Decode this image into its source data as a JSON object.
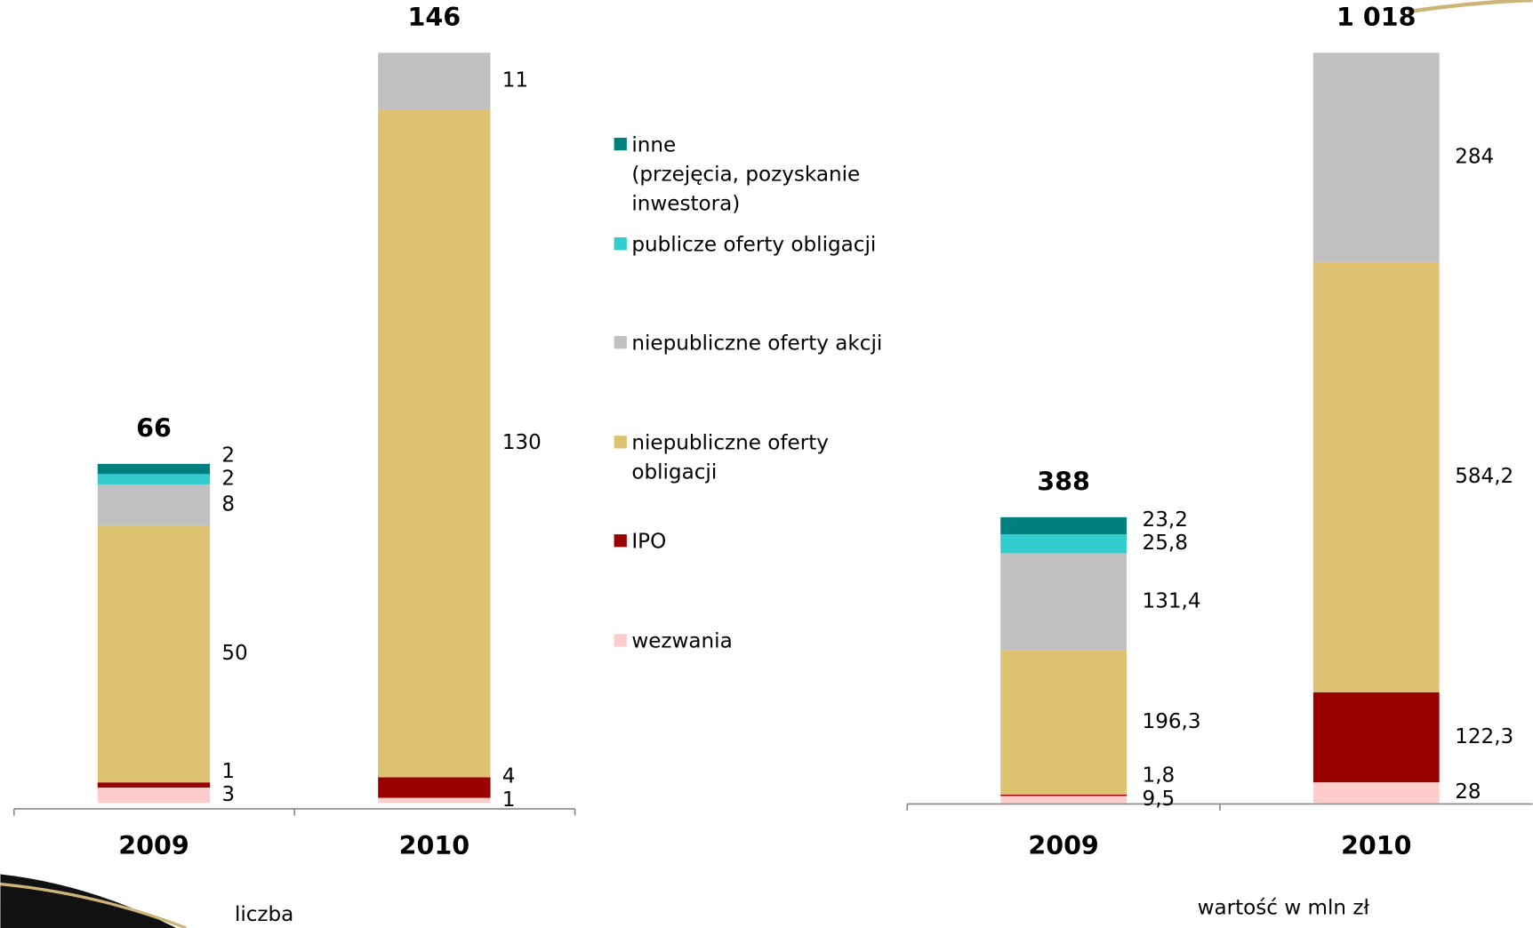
{
  "chart_data": [
    {
      "type": "bar",
      "stacked": true,
      "x_label": "liczba",
      "categories": [
        "2009",
        "2010"
      ],
      "totals": [
        66,
        146
      ],
      "series": [
        {
          "name": "wezwania",
          "color": "#ffcccc",
          "values": [
            3,
            1
          ]
        },
        {
          "name": "IPO",
          "color": "#990000",
          "values": [
            1,
            4
          ]
        },
        {
          "name": "niepubliczne oferty\nobligacji",
          "color": "#ddc271",
          "values": [
            50,
            130
          ]
        },
        {
          "name": "niepubliczne oferty akcji",
          "color": "#c0c0c0",
          "values": [
            8,
            11
          ]
        },
        {
          "name": "publicze oferty obligacji",
          "color": "#33cccc",
          "values": [
            2,
            null
          ]
        },
        {
          "name": "inne\n(przejęcia, pozyskanie\ninwestora)",
          "color": "#007f7f",
          "values": [
            2,
            null
          ]
        }
      ]
    },
    {
      "type": "bar",
      "stacked": true,
      "x_label": "wartość w mln zł",
      "categories": [
        "2009",
        "2010"
      ],
      "totals": [
        388,
        1018
      ],
      "total_labels": [
        "388",
        "1 018"
      ],
      "series": [
        {
          "color": "#ffcccc",
          "values": [
            9.5,
            28
          ],
          "value_labels": [
            "9,5",
            "28"
          ]
        },
        {
          "color": "#990000",
          "values": [
            1.8,
            122.3
          ],
          "value_labels": [
            "1,8",
            "122,3"
          ]
        },
        {
          "color": "#ddc271",
          "values": [
            196.3,
            584.2
          ],
          "value_labels": [
            "196,3",
            "584,2"
          ]
        },
        {
          "color": "#c0c0c0",
          "values": [
            131.4,
            284
          ],
          "value_labels": [
            "131,4",
            "284"
          ]
        },
        {
          "color": "#33cccc",
          "values": [
            25.8,
            null
          ],
          "value_labels": [
            "25,8",
            null
          ]
        },
        {
          "color": "#007f7f",
          "values": [
            23.2,
            null
          ],
          "value_labels": [
            "23,2",
            null
          ]
        }
      ]
    }
  ]
}
